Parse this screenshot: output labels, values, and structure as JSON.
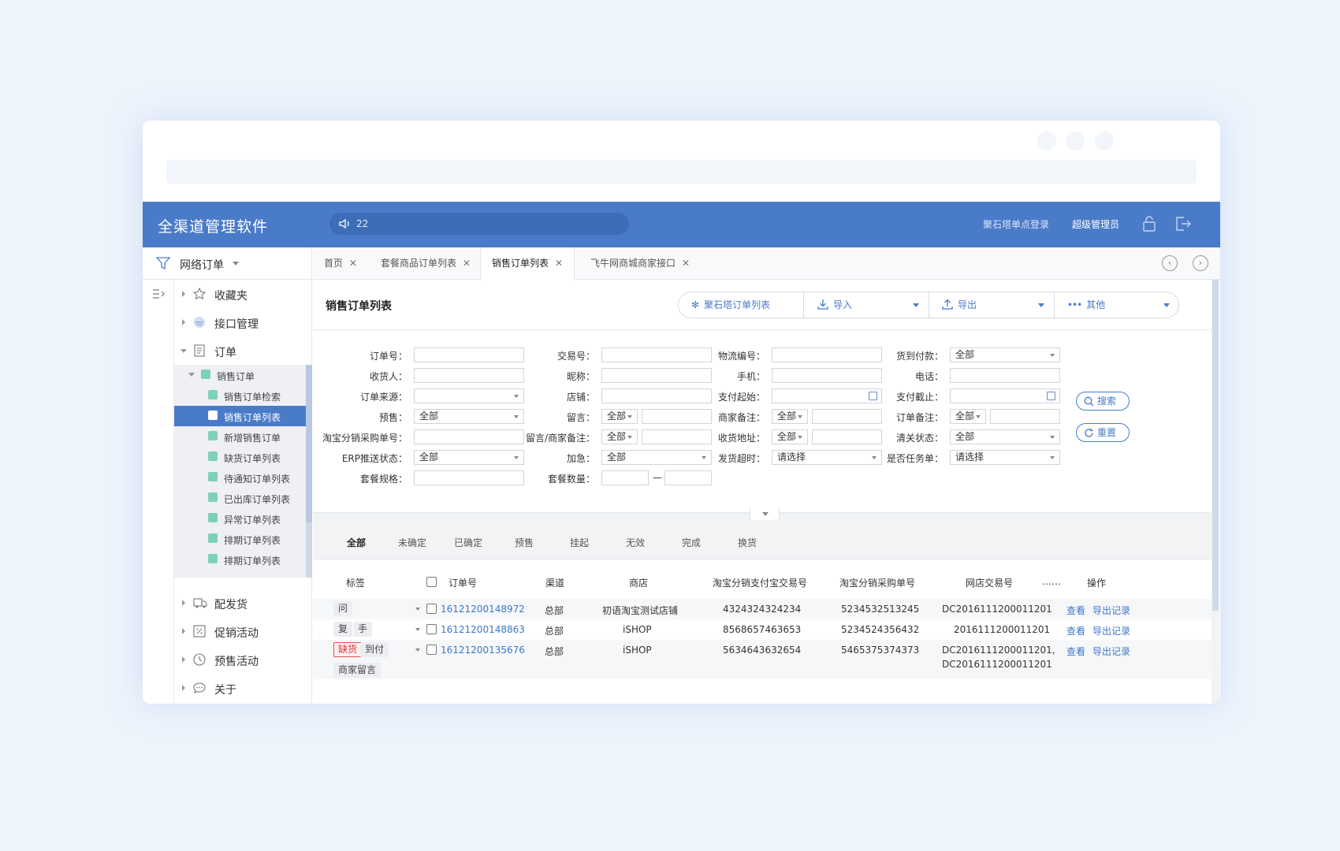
{
  "app": {
    "title": "全渠道管理软件",
    "notice": "22",
    "sso": "聚石塔单点登录",
    "user": "超级管理员"
  },
  "sidebar": {
    "top_label": "网络订单",
    "menu": [
      "收藏夹",
      "接口管理",
      "订单"
    ],
    "sub_header": "销售订单",
    "sub_items": [
      "销售订单检索",
      "销售订单列表",
      "新增销售订单",
      "缺货订单列表",
      "待通知订单列表",
      "已出库订单列表",
      "异常订单列表",
      "排期订单列表",
      "排期订单列表"
    ],
    "bottom_menu": [
      "配发货",
      "促销活动",
      "预售活动",
      "关于"
    ]
  },
  "tabs": [
    "首页",
    "套餐商品订单列表",
    "销售订单列表",
    "飞牛网商城商家接口"
  ],
  "page": {
    "title": "销售订单列表",
    "toolbar": {
      "jst": "聚石塔订单列表",
      "import": "导入",
      "export": "导出",
      "other": "其他"
    }
  },
  "form": {
    "labels": {
      "order_no": "订单号：",
      "trade_no": "交易号：",
      "logistics_no": "物流编号：",
      "cod": "货到付款：",
      "receiver": "收货人：",
      "nickname": "昵称：",
      "mobile": "手机：",
      "phone": "电话：",
      "source": "订单来源：",
      "shop": "店铺：",
      "pay_start": "支付起始：",
      "pay_end": "支付截止：",
      "presale": "预售：",
      "message": "留言：",
      "merchant_note": "商家备注：",
      "order_note": "订单备注：",
      "tb_purchase_no": "淘宝分销采购单号：",
      "msg_merchant_note": "留言/商家备注：",
      "address": "收货地址：",
      "customs": "清关状态：",
      "erp_status": "ERP推送状态：",
      "urgent": "加急：",
      "ship_timeout": "发货超时：",
      "is_task": "是否任务单：",
      "combo_spec": "套餐规格：",
      "combo_qty": "套餐数量："
    },
    "values": {
      "all": "全部",
      "please_select": "请选择",
      "dash": "—"
    },
    "buttons": {
      "search": "搜索",
      "reset": "重置"
    }
  },
  "status_tabs": [
    "全部",
    "未确定",
    "已确定",
    "预售",
    "挂起",
    "无效",
    "完成",
    "换货"
  ],
  "table": {
    "headers": {
      "tag": "标签",
      "order_no": "订单号",
      "channel": "渠道",
      "shop": "商店",
      "tb_pay_no": "淘宝分销支付宝交易号",
      "tb_purchase_no": "淘宝分销采购单号",
      "store_trade_no": "网店交易号",
      "more": "……",
      "ops": "操作"
    },
    "rows": [
      {
        "tags": [
          "问"
        ],
        "order_no": "16121200148972",
        "channel": "总部",
        "shop": "初语淘宝测试店铺",
        "tb_pay_no": "4324324324234",
        "tb_purchase_no": "5234532513245",
        "store_trade_no": "DC2016111200011201",
        "store_trade_no2": ""
      },
      {
        "tags": [
          "复",
          "手"
        ],
        "order_no": "16121200148863",
        "channel": "总部",
        "shop": "iSHOP",
        "tb_pay_no": "8568657463653",
        "tb_purchase_no": "5234524356432",
        "store_trade_no": "2016111200011201",
        "store_trade_no2": ""
      },
      {
        "tags": [
          "缺货",
          "到付",
          "商家留言"
        ],
        "order_no": "16121200135676",
        "channel": "总部",
        "shop": "iSHOP",
        "tb_pay_no": "5634643632654",
        "tb_purchase_no": "5465375374373",
        "store_trade_no": "DC2016111200011201,",
        "store_trade_no2": "DC2016111200011201"
      }
    ],
    "ops": {
      "view": "查看",
      "export_log": "导出记录"
    }
  },
  "colors": {
    "primary": "#4a7bc9",
    "link": "#3d78c9",
    "alert": "#d33"
  }
}
